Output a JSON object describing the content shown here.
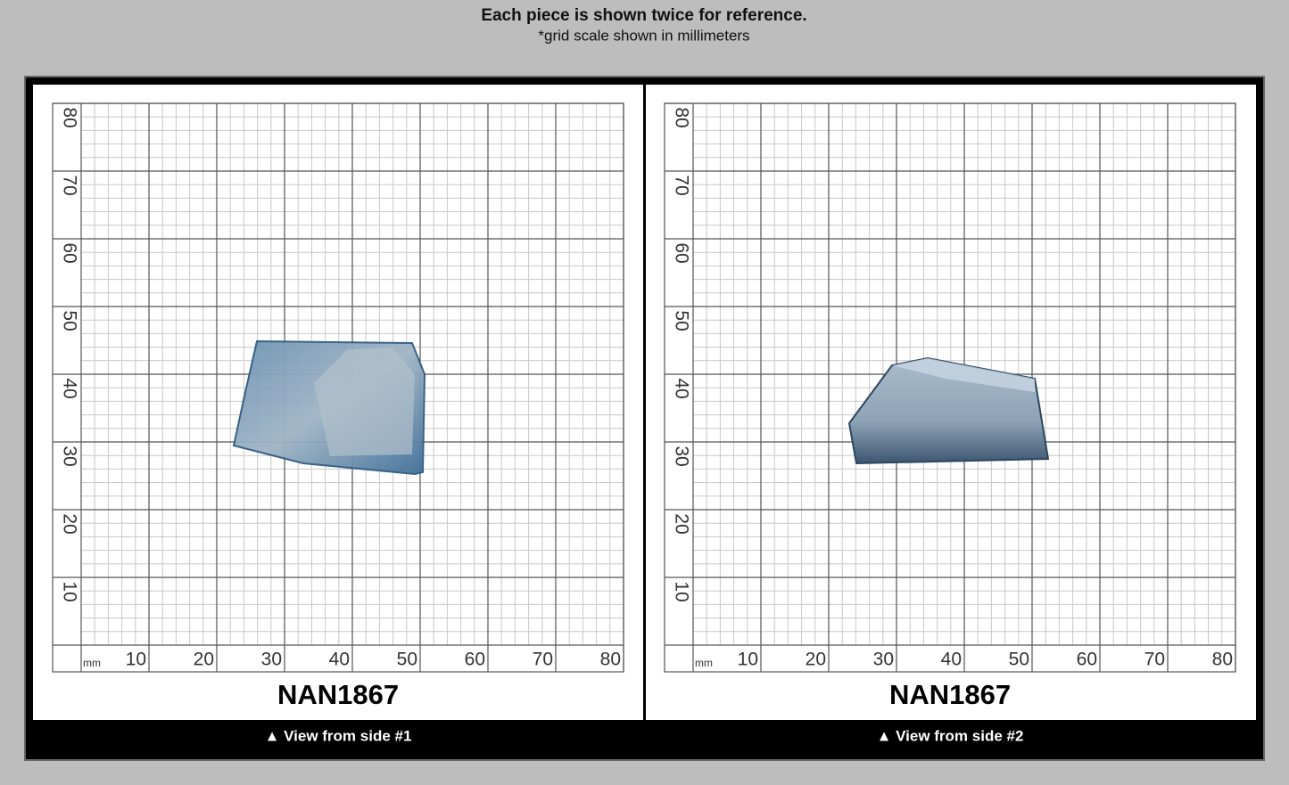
{
  "header": {
    "title": "Each piece is shown twice for reference.",
    "subtitle": "*grid scale shown in millimeters"
  },
  "grid": {
    "unit": "mm",
    "x_labels": [
      10,
      20,
      30,
      40,
      50,
      60,
      70,
      80
    ],
    "y_labels": [
      10,
      20,
      30,
      40,
      50,
      60,
      70,
      80
    ]
  },
  "panels": [
    {
      "code": "NAN1867",
      "caption": "▲ View from side #1"
    },
    {
      "code": "NAN1867",
      "caption": "▲ View from side #2"
    }
  ]
}
